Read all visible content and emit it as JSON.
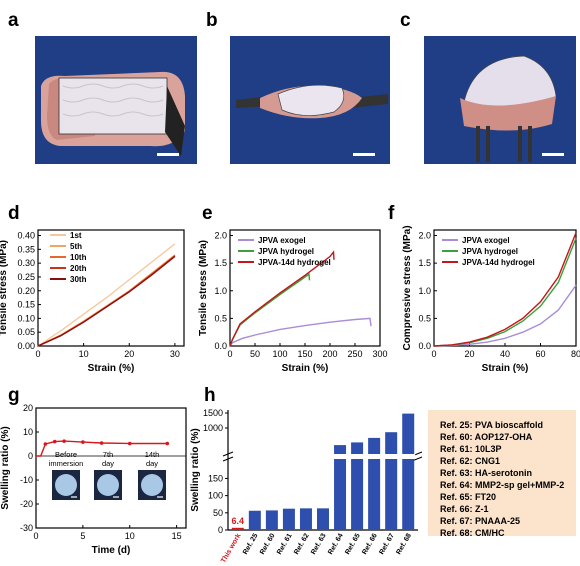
{
  "panel_labels": {
    "a": "a",
    "b": "b",
    "c": "c",
    "d": "d",
    "e": "e",
    "f": "f",
    "g": "g",
    "h": "h"
  },
  "colors": {
    "photo_bg": "#1f3e86",
    "exogel": "#a98dd6",
    "hydrogel": "#3aa03a",
    "aged": "#c4161c",
    "d_series": [
      "#f6c79a",
      "#f2a55c",
      "#e36a2a",
      "#c93318",
      "#8b0e0e"
    ],
    "this_work": "#d7191c",
    "refs": "#2f4fae",
    "ref_box": "#fbe3cc"
  },
  "chart_data": [
    {
      "id": "d",
      "type": "line",
      "xlabel": "Strain (%)",
      "ylabel": "Tensile stress (MPa)",
      "xlim": [
        0,
        32
      ],
      "ylim": [
        0,
        0.42
      ],
      "xticks": [
        0,
        10,
        20,
        30
      ],
      "yticks": [
        "0.00",
        "0.05",
        "0.10",
        "0.15",
        "0.20",
        "0.25",
        "0.30",
        "0.35",
        "0.40"
      ],
      "legend": "top-left",
      "series": [
        {
          "name": "1st",
          "x": [
            0,
            5,
            10,
            15,
            20,
            25,
            30
          ],
          "y": [
            0,
            0.055,
            0.115,
            0.175,
            0.24,
            0.305,
            0.37
          ]
        },
        {
          "name": "5th",
          "x": [
            0,
            5,
            10,
            15,
            20,
            25,
            30
          ],
          "y": [
            0,
            0.04,
            0.09,
            0.145,
            0.2,
            0.265,
            0.33
          ]
        },
        {
          "name": "10th",
          "x": [
            0,
            5,
            10,
            15,
            20,
            25,
            30
          ],
          "y": [
            0,
            0.039,
            0.088,
            0.143,
            0.199,
            0.262,
            0.328
          ]
        },
        {
          "name": "20th",
          "x": [
            0,
            5,
            10,
            15,
            20,
            25,
            30
          ],
          "y": [
            0,
            0.038,
            0.087,
            0.142,
            0.197,
            0.26,
            0.326
          ]
        },
        {
          "name": "30th",
          "x": [
            0,
            5,
            10,
            15,
            20,
            25,
            30
          ],
          "y": [
            0,
            0.037,
            0.086,
            0.141,
            0.196,
            0.258,
            0.324
          ]
        }
      ]
    },
    {
      "id": "e",
      "type": "line",
      "xlabel": "Strain (%)",
      "ylabel": "Tensile stress (MPa)",
      "xlim": [
        0,
        300
      ],
      "ylim": [
        0,
        2.1
      ],
      "xticks": [
        0,
        50,
        100,
        150,
        200,
        250,
        300
      ],
      "yticks": [
        "0.0",
        "0.5",
        "1.0",
        "1.5",
        "2.0"
      ],
      "legend": "top-left",
      "series": [
        {
          "name": "JPVA exogel",
          "x": [
            0,
            5,
            25,
            50,
            100,
            150,
            200,
            250,
            280,
            282
          ],
          "y": [
            0,
            0.06,
            0.14,
            0.2,
            0.3,
            0.37,
            0.43,
            0.48,
            0.5,
            0.36
          ]
        },
        {
          "name": "JPVA hydrogel",
          "x": [
            0,
            5,
            20,
            50,
            100,
            150,
            158,
            159
          ],
          "y": [
            0,
            0.12,
            0.38,
            0.6,
            0.93,
            1.25,
            1.3,
            1.19
          ]
        },
        {
          "name": "JPVA-14d hydrogel",
          "x": [
            0,
            5,
            20,
            50,
            100,
            150,
            200,
            207,
            208
          ],
          "y": [
            0,
            0.12,
            0.4,
            0.62,
            0.96,
            1.28,
            1.62,
            1.7,
            1.56
          ]
        }
      ]
    },
    {
      "id": "f",
      "type": "line",
      "xlabel": "Strain (%)",
      "ylabel": "Compressive stress (MPa)",
      "xlim": [
        0,
        80
      ],
      "ylim": [
        0,
        2.1
      ],
      "xticks": [
        0,
        20,
        40,
        60,
        80
      ],
      "yticks": [
        "0.0",
        "0.5",
        "1.0",
        "1.5",
        "2.0"
      ],
      "legend": "top-left",
      "series": [
        {
          "name": "JPVA exogel",
          "x": [
            0,
            10,
            20,
            30,
            40,
            50,
            60,
            70,
            80
          ],
          "y": [
            0,
            0.01,
            0.03,
            0.07,
            0.14,
            0.25,
            0.4,
            0.65,
            1.1
          ]
        },
        {
          "name": "JPVA hydrogel",
          "x": [
            0,
            10,
            20,
            30,
            40,
            50,
            60,
            70,
            80
          ],
          "y": [
            0,
            0.02,
            0.06,
            0.14,
            0.26,
            0.45,
            0.72,
            1.15,
            1.95
          ]
        },
        {
          "name": "JPVA-14d hydrogel",
          "x": [
            0,
            10,
            20,
            30,
            40,
            50,
            60,
            70,
            80
          ],
          "y": [
            0,
            0.02,
            0.07,
            0.16,
            0.3,
            0.5,
            0.8,
            1.25,
            2.05
          ]
        }
      ]
    },
    {
      "id": "g",
      "type": "line",
      "xlabel": "Time (d)",
      "ylabel": "Swelling ratio (%)",
      "xlim": [
        0,
        16
      ],
      "ylim": [
        -30,
        20
      ],
      "xticks": [
        0,
        5,
        10,
        15
      ],
      "yticks": [
        "-30",
        "-20",
        "-10",
        "0",
        "10",
        "20"
      ],
      "series": [
        {
          "name": "",
          "x": [
            0,
            0.5,
            1,
            2,
            3,
            5,
            7,
            10,
            14
          ],
          "y": [
            0,
            0,
            5,
            6,
            6.2,
            5.8,
            5.4,
            5.2,
            5.2
          ]
        }
      ],
      "insets": [
        "Before immersion",
        "7th day",
        "14th day"
      ]
    },
    {
      "id": "h",
      "type": "bar",
      "ylabel": "Swelling ratio (%)",
      "yticks": [
        "0",
        "50",
        "100",
        "150",
        "1000",
        "1500"
      ],
      "categories": [
        "This work",
        "Ref. 25",
        "Ref. 60",
        "Ref. 61",
        "Ref. 62",
        "Ref. 63",
        "Ref. 64",
        "Ref. 65",
        "Ref. 66",
        "Ref. 67",
        "Ref. 68"
      ],
      "values": [
        6.4,
        56,
        57,
        62,
        63,
        63,
        430,
        520,
        670,
        860,
        1480
      ],
      "annotation": "6.4"
    }
  ],
  "ref_list": [
    "Ref. 25: PVA bioscaffold",
    "Ref. 60: AOP127-OHA",
    "Ref. 61: 10L3P",
    "Ref. 62: CNG1",
    "Ref. 63: HA-serotonin",
    "Ref. 64: MMP2-sp gel+MMP-2",
    "Ref. 65: FT20",
    "Ref. 66: Z-1",
    "Ref. 67: PNAAA-25",
    "Ref. 68: CM/HC"
  ]
}
